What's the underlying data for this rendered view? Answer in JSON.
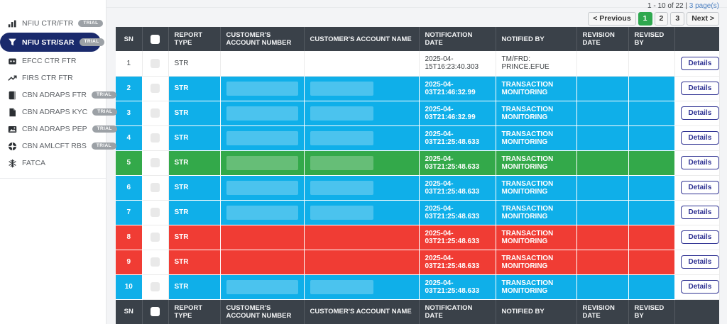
{
  "sidebar": {
    "trial_label": "TRIAL",
    "items": [
      {
        "label": "NFIU CTR/FTR",
        "icon": "bar-chart-icon",
        "trial": true,
        "active": false
      },
      {
        "label": "NFIU STR/SAR",
        "icon": "funnel-icon",
        "trial": true,
        "active": true
      },
      {
        "label": "EFCC CTR FTR",
        "icon": "robot-face-icon",
        "trial": false,
        "active": false
      },
      {
        "label": "FIRS CTR FTR",
        "icon": "trend-up-icon",
        "trial": false,
        "active": false
      },
      {
        "label": "CBN ADRAPS FTR",
        "icon": "book-icon",
        "trial": true,
        "active": false
      },
      {
        "label": "CBN ADRAPS KYC",
        "icon": "file-icon",
        "trial": true,
        "active": false
      },
      {
        "label": "CBN ADRAPS PEP",
        "icon": "image-icon",
        "trial": true,
        "active": false
      },
      {
        "label": "CBN AMLCFT RBS",
        "icon": "wheel-icon",
        "trial": true,
        "active": false
      },
      {
        "label": "FATCA",
        "icon": "snowflake-icon",
        "trial": false,
        "active": false
      }
    ]
  },
  "pagination": {
    "summary_range": "1 - 10 of 22 | ",
    "summary_pages": "3 page(s)",
    "previous_label": "< Previous",
    "pages": [
      "1",
      "2",
      "3"
    ],
    "active_page": "1",
    "next_label": "Next >"
  },
  "table": {
    "columns": [
      "SN",
      "",
      "REPORT TYPE",
      "CUSTOMER'S ACCOUNT NUMBER",
      "CUSTOMER'S ACCOUNT NAME",
      "NOTIFICATION DATE",
      "NOTIFIED BY",
      "REVISION DATE",
      "REVISED BY",
      ""
    ],
    "details_label": "Details",
    "rows": [
      {
        "sn": "1",
        "report_type": "STR",
        "account_number": "",
        "account_name": "",
        "notification_date": "2025-04-15T16:23:40.303",
        "notified_by": "TM/FRD: PRINCE.EFUE",
        "revision_date": "",
        "revised_by": "",
        "row_color": "white",
        "redacted": false
      },
      {
        "sn": "2",
        "report_type": "STR",
        "account_number": "",
        "account_name": "",
        "notification_date": "2025-04-03T21:46:32.99",
        "notified_by": "TRANSACTION MONITORING",
        "revision_date": "",
        "revised_by": "",
        "row_color": "blue",
        "redacted": true
      },
      {
        "sn": "3",
        "report_type": "STR",
        "account_number": "",
        "account_name": "",
        "notification_date": "2025-04-03T21:46:32.99",
        "notified_by": "TRANSACTION MONITORING",
        "revision_date": "",
        "revised_by": "",
        "row_color": "blue",
        "redacted": true
      },
      {
        "sn": "4",
        "report_type": "STR",
        "account_number": "",
        "account_name": "",
        "notification_date": "2025-04-03T21:25:48.633",
        "notified_by": "TRANSACTION MONITORING",
        "revision_date": "",
        "revised_by": "",
        "row_color": "blue",
        "redacted": true
      },
      {
        "sn": "5",
        "report_type": "STR",
        "account_number": "",
        "account_name": "",
        "notification_date": "2025-04-03T21:25:48.633",
        "notified_by": "TRANSACTION MONITORING",
        "revision_date": "",
        "revised_by": "",
        "row_color": "green",
        "redacted": true
      },
      {
        "sn": "6",
        "report_type": "STR",
        "account_number": "",
        "account_name": "",
        "notification_date": "2025-04-03T21:25:48.633",
        "notified_by": "TRANSACTION MONITORING",
        "revision_date": "",
        "revised_by": "",
        "row_color": "blue",
        "redacted": true
      },
      {
        "sn": "7",
        "report_type": "STR",
        "account_number": "",
        "account_name": "",
        "notification_date": "2025-04-03T21:25:48.633",
        "notified_by": "TRANSACTION MONITORING",
        "revision_date": "",
        "revised_by": "",
        "row_color": "blue",
        "redacted": true
      },
      {
        "sn": "8",
        "report_type": "STR",
        "account_number": "",
        "account_name": "",
        "notification_date": "2025-04-03T21:25:48.633",
        "notified_by": "TRANSACTION MONITORING",
        "revision_date": "",
        "revised_by": "",
        "row_color": "red",
        "redacted": false
      },
      {
        "sn": "9",
        "report_type": "STR",
        "account_number": "",
        "account_name": "",
        "notification_date": "2025-04-03T21:25:48.633",
        "notified_by": "TRANSACTION MONITORING",
        "revision_date": "",
        "revised_by": "",
        "row_color": "red",
        "redacted": false
      },
      {
        "sn": "10",
        "report_type": "STR",
        "account_number": "",
        "account_name": "",
        "notification_date": "2025-04-03T21:25:48.633",
        "notified_by": "TRANSACTION MONITORING",
        "revision_date": "",
        "revised_by": "",
        "row_color": "blue",
        "redacted": true
      }
    ]
  },
  "colors": {
    "row_blue": "#0fafe9",
    "row_green": "#33a94a",
    "row_red": "#f03c34",
    "row_white": "#ffffff",
    "header_bg": "#3a4149",
    "active_nav": "#1a2a6c",
    "active_page_green": "#2fa84f",
    "trial_badge_gray": "#9ca1a6",
    "details_navy": "#2e3192"
  }
}
